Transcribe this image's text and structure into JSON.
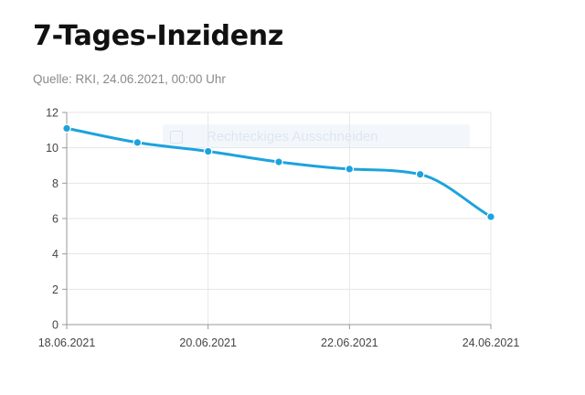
{
  "header": {
    "title": "7-Tages-Inzidenz",
    "subtitle": "Quelle: RKI, 24.06.2021, 00:00 Uhr"
  },
  "overlay": {
    "label": "Rechteckiges Ausschneiden"
  },
  "chart_data": {
    "type": "line",
    "title": "7-Tages-Inzidenz",
    "subtitle": "Quelle: RKI, 24.06.2021, 00:00 Uhr",
    "xlabel": "",
    "ylabel": "",
    "x": [
      "18.06.2021",
      "19.06.2021",
      "20.06.2021",
      "21.06.2021",
      "22.06.2021",
      "23.06.2021",
      "24.06.2021"
    ],
    "series": [
      {
        "values": [
          11.1,
          10.3,
          9.8,
          9.2,
          8.8,
          8.5,
          6.1
        ],
        "color": "#1ca3dd"
      }
    ],
    "x_tick_labels": [
      "18.06.2021",
      "20.06.2021",
      "22.06.2021",
      "24.06.2021"
    ],
    "y_ticks": [
      0,
      2,
      4,
      6,
      8,
      10,
      12
    ],
    "ylim": [
      0,
      12
    ],
    "grid": true,
    "legend": "none"
  }
}
